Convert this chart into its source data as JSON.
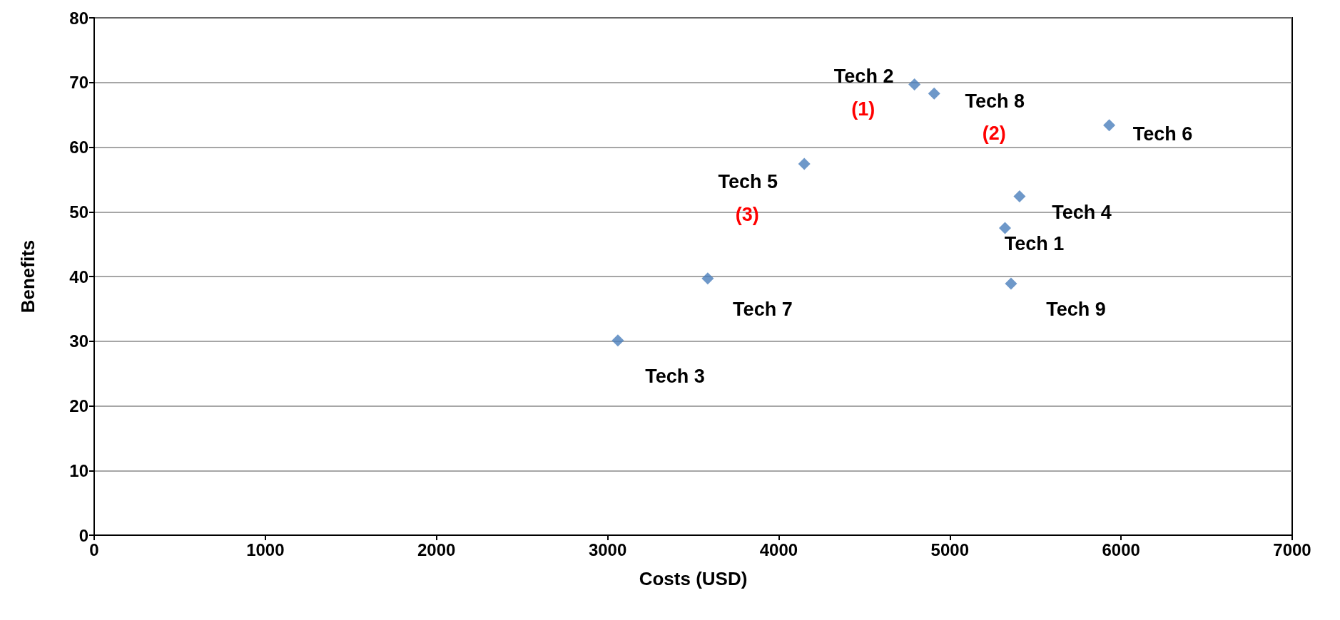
{
  "chart_data": {
    "type": "scatter",
    "xlabel": "Costs (USD)",
    "ylabel": "Benefits",
    "x": [
      5322,
      4793,
      3060,
      5407,
      4149,
      5931,
      3585,
      4908,
      5357
    ],
    "series": [
      {
        "color": "#4a7ebb",
        "values": [
          47.5,
          69.7,
          30.1,
          52.4,
          57.4,
          63.4,
          39.7,
          68.3,
          38.9
        ]
      }
    ],
    "marker": "diamond",
    "grid": "y",
    "xlim": [
      0,
      7000
    ],
    "xticks": [
      0,
      1000,
      2000,
      3000,
      4000,
      5000,
      6000,
      7000
    ],
    "ylim": [
      0,
      80
    ],
    "yticks": [
      0,
      10,
      20,
      30,
      40,
      50,
      60,
      70,
      80
    ],
    "annotations": [
      {
        "text": "Tech 2",
        "x": 4793,
        "y": 69.7
      },
      "(1)",
      {
        "text": "Tech 8",
        "x": 4908,
        "y": 68.3
      },
      "(2)",
      {
        "text": "Tech 6",
        "x": 5931,
        "y": 63.4
      },
      {
        "text": "Tech 5",
        "x": 4149,
        "y": 57.4
      },
      "(3)",
      {
        "text": "Tech 4",
        "x": 5407,
        "y": 52.4
      },
      {
        "text": "Tech 1",
        "x": 5322,
        "y": 47.5
      },
      {
        "text": "Tech 9",
        "x": 5357,
        "y": 38.9
      },
      {
        "text": "Tech 7",
        "x": 3585,
        "y": 39.7
      },
      {
        "text": "Tech 3",
        "x": 3060,
        "y": 30.1
      }
    ]
  }
}
